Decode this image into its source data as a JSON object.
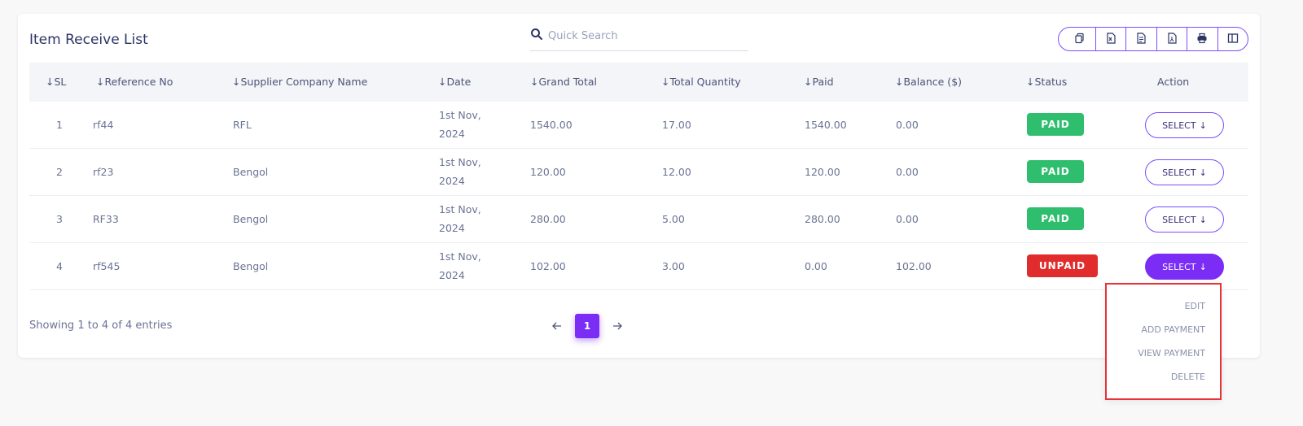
{
  "header": {
    "title": "Item Receive List"
  },
  "search": {
    "placeholder": "Quick Search",
    "value": ""
  },
  "toolbar": {
    "tools": [
      "copy-icon",
      "excel-icon",
      "csv-icon",
      "pdf-icon",
      "print-icon",
      "columns-icon"
    ]
  },
  "table": {
    "columns": [
      "SL",
      "Reference No",
      "Supplier Company Name",
      "Date",
      "Grand Total",
      "Total Quantity",
      "Paid",
      "Balance ($)",
      "Status",
      "Action"
    ],
    "rows": [
      {
        "sl": "1",
        "ref": "rf44",
        "supplier": "RFL",
        "date1": "1st Nov,",
        "date2": "2024",
        "grand_total": "1540.00",
        "qty": "17.00",
        "paid": "1540.00",
        "balance": "0.00",
        "status": "PAID",
        "action": "SELECT"
      },
      {
        "sl": "2",
        "ref": "rf23",
        "supplier": "Bengol",
        "date1": "1st Nov,",
        "date2": "2024",
        "grand_total": "120.00",
        "qty": "12.00",
        "paid": "120.00",
        "balance": "0.00",
        "status": "PAID",
        "action": "SELECT"
      },
      {
        "sl": "3",
        "ref": "RF33",
        "supplier": "Bengol",
        "date1": "1st Nov,",
        "date2": "2024",
        "grand_total": "280.00",
        "qty": "5.00",
        "paid": "280.00",
        "balance": "0.00",
        "status": "PAID",
        "action": "SELECT"
      },
      {
        "sl": "4",
        "ref": "rf545",
        "supplier": "Bengol",
        "date1": "1st Nov,",
        "date2": "2024",
        "grand_total": "102.00",
        "qty": "3.00",
        "paid": "0.00",
        "balance": "102.00",
        "status": "UNPAID",
        "action": "SELECT"
      }
    ]
  },
  "footer": {
    "info": "Showing 1 to 4 of 4 entries",
    "current_page": "1"
  },
  "dropdown": {
    "items": [
      "EDIT",
      "ADD PAYMENT",
      "VIEW PAYMENT",
      "DELETE"
    ]
  },
  "colors": {
    "accent": "#7b2cf5",
    "paid": "#2fbd6e",
    "unpaid": "#e02c2c",
    "highlight_border": "#e8323a"
  }
}
